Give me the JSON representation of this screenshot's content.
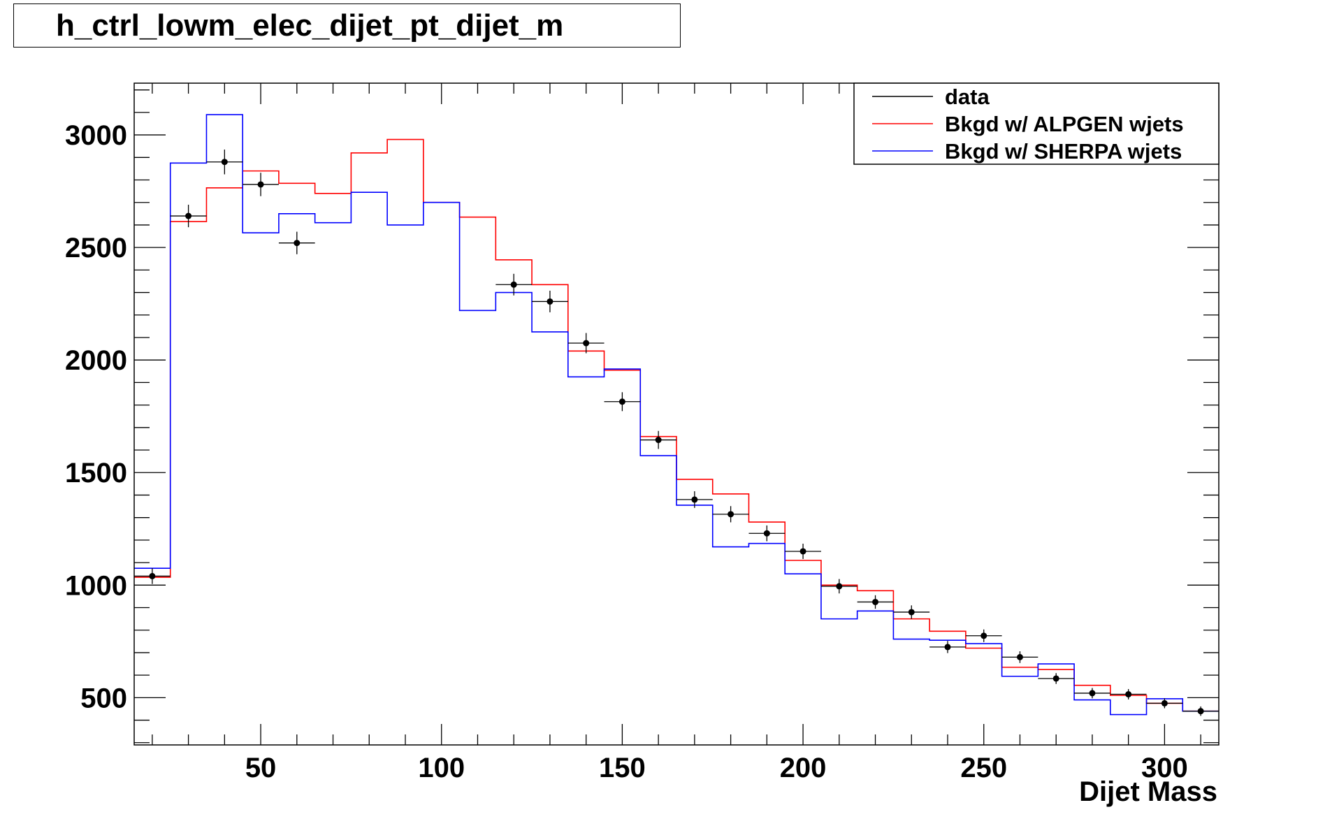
{
  "title": "h_ctrl_lowm_elec_dijet_pt_dijet_m",
  "chart_data": {
    "type": "line",
    "title": "h_ctrl_lowm_elec_dijet_pt_dijet_m",
    "xlabel": "Dijet Mass",
    "ylabel": "",
    "xlim": [
      15,
      315
    ],
    "ylim": [
      290,
      3230
    ],
    "grid": false,
    "legend_position": "top-right",
    "bin_edges": [
      15,
      25,
      35,
      45,
      55,
      65,
      75,
      85,
      95,
      105,
      115,
      125,
      135,
      145,
      155,
      165,
      175,
      185,
      195,
      205,
      215,
      225,
      235,
      245,
      255,
      265,
      275,
      285,
      295,
      305,
      315
    ],
    "x_ticks": [
      50,
      100,
      150,
      200,
      250,
      300
    ],
    "y_ticks": [
      500,
      1000,
      1500,
      2000,
      2500,
      3000
    ],
    "x_tick_labels": [
      "50",
      "100",
      "150",
      "200",
      "250",
      "300"
    ],
    "y_tick_labels": [
      "500",
      "1000",
      "1500",
      "2000",
      "2500",
      "3000"
    ],
    "series": [
      {
        "name": "data",
        "kind": "points",
        "color": "#000000",
        "x": [
          20,
          30,
          40,
          50,
          60,
          70,
          80,
          90,
          100,
          110,
          120,
          130,
          140,
          150,
          160,
          170,
          180,
          190,
          200,
          210,
          220,
          230,
          240,
          250,
          260,
          270,
          280,
          290,
          300,
          310
        ],
        "values": [
          1040,
          2640,
          2880,
          2780,
          2520,
          null,
          null,
          null,
          null,
          null,
          2335,
          2260,
          2075,
          1815,
          1645,
          1380,
          1315,
          1230,
          1150,
          995,
          925,
          880,
          725,
          775,
          680,
          585,
          520,
          515,
          475,
          440
        ],
        "errors": [
          35,
          50,
          55,
          52,
          50,
          null,
          null,
          null,
          null,
          null,
          48,
          48,
          45,
          42,
          40,
          37,
          36,
          35,
          34,
          32,
          30,
          30,
          27,
          28,
          26,
          24,
          23,
          23,
          22,
          21
        ]
      },
      {
        "name": "Bkgd w/ ALPGEN wjets",
        "kind": "step",
        "color": "#ff0000",
        "values": [
          1035,
          2615,
          2765,
          2840,
          2785,
          2740,
          2920,
          2980,
          2700,
          2635,
          2445,
          2335,
          2040,
          1955,
          1660,
          1470,
          1405,
          1280,
          1110,
          1000,
          975,
          850,
          795,
          720,
          635,
          625,
          555,
          510,
          475,
          440
        ]
      },
      {
        "name": "Bkgd w/ SHERPA wjets",
        "kind": "step",
        "color": "#0000ff",
        "values": [
          1075,
          2875,
          3090,
          2565,
          2650,
          2610,
          2745,
          2600,
          2700,
          2220,
          2300,
          2125,
          1925,
          1960,
          1575,
          1355,
          1170,
          1185,
          1050,
          850,
          885,
          760,
          755,
          740,
          595,
          650,
          490,
          425,
          495,
          440
        ]
      }
    ]
  }
}
